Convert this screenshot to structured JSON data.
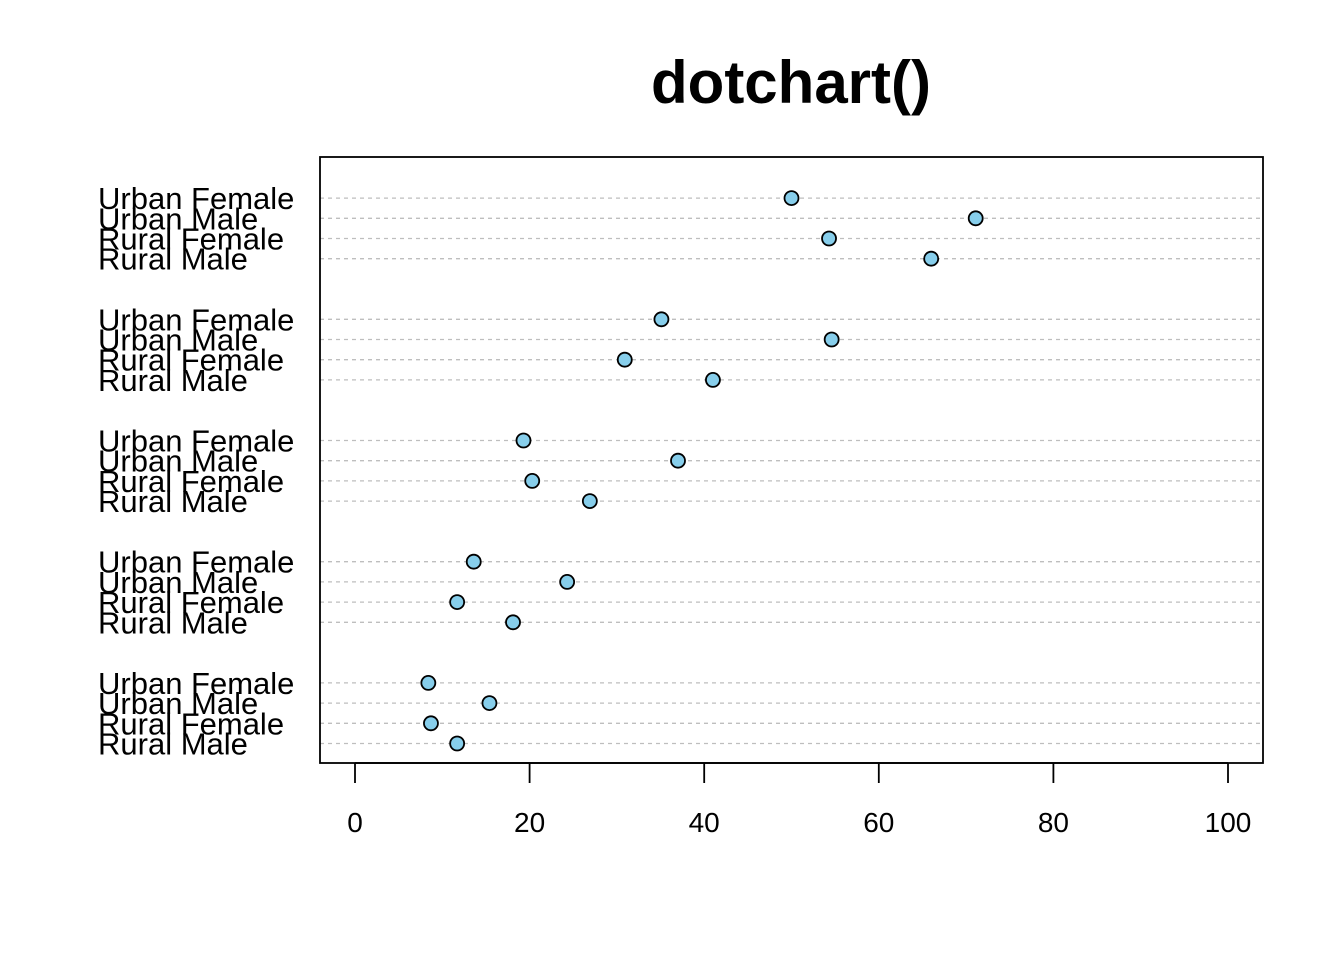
{
  "chart_data": {
    "type": "dotchart",
    "title": "dotchart()",
    "xlabel": "",
    "ylabel": "",
    "xlim": [
      0,
      100
    ],
    "x_ticks": [
      "0",
      "20",
      "40",
      "60",
      "80",
      "100"
    ],
    "grid": "dashed horizontal lines",
    "legend": "none",
    "point_color": "#87ceeb",
    "categories": [
      "Rural Male",
      "Rural Female",
      "Urban Male",
      "Urban Female"
    ],
    "groups": [
      {
        "values": [
          11.7,
          8.7,
          15.4,
          8.4
        ]
      },
      {
        "values": [
          18.1,
          11.7,
          24.3,
          13.6
        ]
      },
      {
        "values": [
          26.9,
          20.3,
          37.0,
          19.3
        ]
      },
      {
        "values": [
          41.0,
          30.9,
          54.6,
          35.1
        ]
      },
      {
        "values": [
          66.0,
          54.3,
          71.1,
          50.0
        ]
      }
    ]
  }
}
